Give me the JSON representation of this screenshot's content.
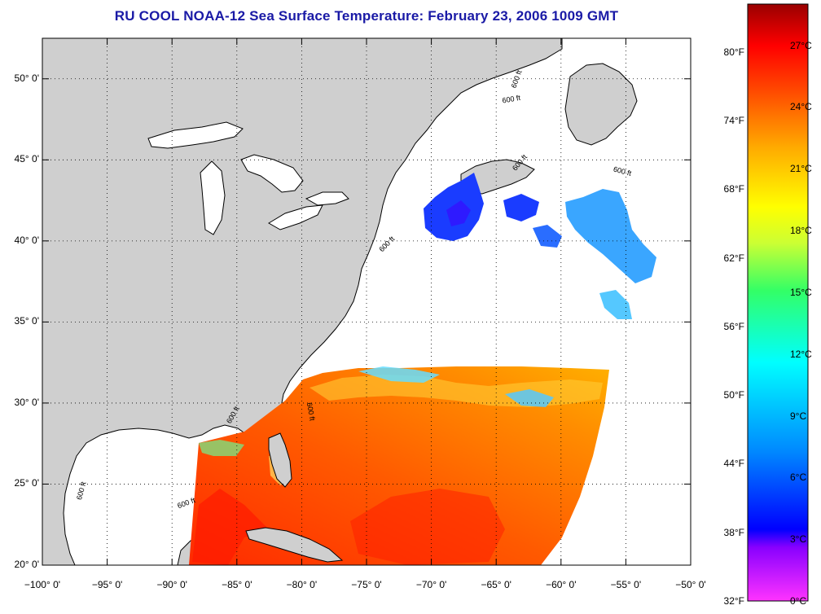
{
  "title": "RU COOL  NOAA-12  Sea Surface Temperature:  February 23, 2006 1009 GMT",
  "map": {
    "lon_range": [
      -100,
      -50
    ],
    "lat_range": [
      20,
      52.5
    ],
    "land_color": "#cfcfcf",
    "ocean_nodata_color": "#ffffff",
    "coastline_color": "#000000",
    "grid": "dotted",
    "lat_ticks": [
      {
        "value": 50,
        "label": "50° 0'"
      },
      {
        "value": 45,
        "label": "45° 0'"
      },
      {
        "value": 40,
        "label": "40° 0'"
      },
      {
        "value": 35,
        "label": "35° 0'"
      },
      {
        "value": 30,
        "label": "30° 0'"
      },
      {
        "value": 25,
        "label": "25° 0'"
      },
      {
        "value": 20,
        "label": "20° 0'"
      }
    ],
    "lon_ticks": [
      {
        "value": -100,
        "label": "−100° 0'"
      },
      {
        "value": -95,
        "label": "−95° 0'"
      },
      {
        "value": -90,
        "label": "−90° 0'"
      },
      {
        "value": -85,
        "label": "−85° 0'"
      },
      {
        "value": -80,
        "label": "−80° 0'"
      },
      {
        "value": -75,
        "label": "−75° 0'"
      },
      {
        "value": -70,
        "label": "−70° 0'"
      },
      {
        "value": -65,
        "label": "−65° 0'"
      },
      {
        "value": -60,
        "label": "−60° 0'"
      },
      {
        "value": -55,
        "label": "−55° 0'"
      },
      {
        "value": -50,
        "label": "−50° 0'"
      }
    ],
    "isobath_labels": [
      {
        "text": "600 ft",
        "lon": -63.5,
        "lat": 49.4,
        "rotate": -70
      },
      {
        "text": "600 ft",
        "lon": -64.5,
        "lat": 48.5,
        "rotate": -10
      },
      {
        "text": "600 ft",
        "lon": -63.5,
        "lat": 44.3,
        "rotate": -50
      },
      {
        "text": "600 ft",
        "lon": -56.0,
        "lat": 44.3,
        "rotate": 15
      },
      {
        "text": "600 ft",
        "lon": -73.8,
        "lat": 39.3,
        "rotate": -45
      },
      {
        "text": "600 ft",
        "lon": -79.6,
        "lat": 30.0,
        "rotate": 80
      },
      {
        "text": "600 ft",
        "lon": -85.5,
        "lat": 28.7,
        "rotate": -60
      },
      {
        "text": "600 ft",
        "lon": -97.0,
        "lat": 24.0,
        "rotate": -75
      },
      {
        "text": "600 ft",
        "lon": -89.5,
        "lat": 23.5,
        "rotate": -20
      }
    ]
  },
  "colorbar": {
    "colors": [
      "#ff33ff",
      "#8800ff",
      "#0000ff",
      "#0088ff",
      "#00ffff",
      "#33ff66",
      "#ccff33",
      "#ffff00",
      "#ffaa00",
      "#ff5500",
      "#ff0000",
      "#aa0000"
    ],
    "fahrenheit_labels": [
      {
        "value": 80,
        "label": "80°F"
      },
      {
        "value": 74,
        "label": "74°F"
      },
      {
        "value": 68,
        "label": "68°F"
      },
      {
        "value": 62,
        "label": "62°F"
      },
      {
        "value": 56,
        "label": "56°F"
      },
      {
        "value": 50,
        "label": "50°F"
      },
      {
        "value": 44,
        "label": "44°F"
      },
      {
        "value": 38,
        "label": "38°F"
      },
      {
        "value": 32,
        "label": "32°F"
      }
    ],
    "celsius_labels": [
      {
        "value": 27,
        "label": "27°C"
      },
      {
        "value": 24,
        "label": "24°C"
      },
      {
        "value": 21,
        "label": "21°C"
      },
      {
        "value": 18,
        "label": "18°C"
      },
      {
        "value": 15,
        "label": "15°C"
      },
      {
        "value": 12,
        "label": "12°C"
      },
      {
        "value": 9,
        "label": "9°C"
      },
      {
        "value": 6,
        "label": "6°C"
      },
      {
        "value": 3,
        "label": "3°C"
      },
      {
        "value": 0,
        "label": "0°C"
      }
    ],
    "celsius_range": [
      0,
      29
    ]
  }
}
